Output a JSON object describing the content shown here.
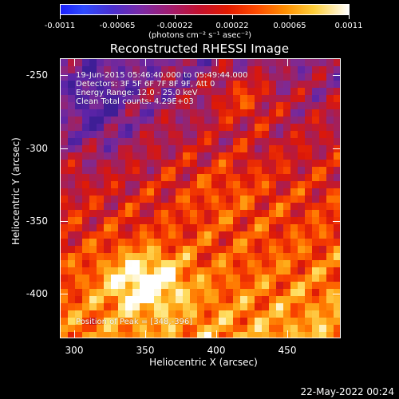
{
  "colorbar": {
    "tick_labels": [
      "-0.0011",
      "-0.00065",
      "-0.00022",
      "0.00022",
      "0.00065",
      "0.0011"
    ],
    "units_label": "(photons cm⁻² s⁻¹ asec⁻²)"
  },
  "title": "Reconstructed RHESSI Image",
  "annotations": {
    "time_range": "19-Jun-2015 05:46:40.000 to 05:49:44.000",
    "detectors": "Detectors: 3F 5F 6F 7F 8F 9F, Att 0",
    "energy_range": "Energy Range: 12.0 - 25.0 keV",
    "clean_counts": "Clean    Total counts: 4.29E+03",
    "peak_position": "Position of Peak = [348,-396]"
  },
  "axes": {
    "xlabel": "Heliocentric X (arcsec)",
    "ylabel": "Heliocentric Y (arcsec)",
    "x_ticks": [
      "300",
      "350",
      "400",
      "450"
    ],
    "y_ticks": [
      "-250",
      "-300",
      "-350",
      "-400"
    ],
    "x_range": [
      289,
      482
    ],
    "y_range": [
      -433,
      -242
    ]
  },
  "footer": {
    "timestamp": "22-May-2022 00:24"
  },
  "colors": {
    "background": "#000000",
    "cold": "#1b20ff",
    "mid": "#a21d70",
    "hot": "#ff8f00",
    "peak": "#ffffff"
  }
}
